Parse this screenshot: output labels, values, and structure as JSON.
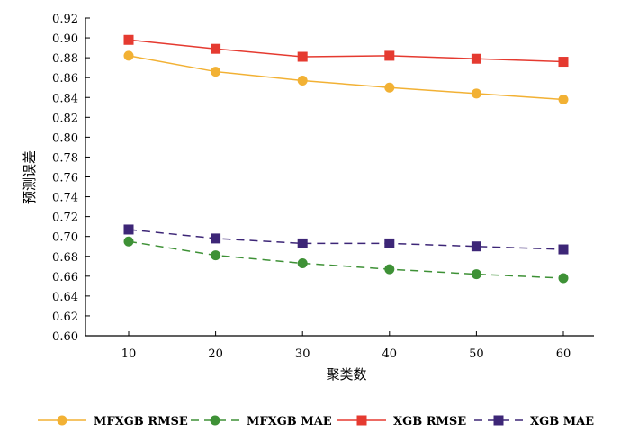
{
  "chart_data": {
    "type": "line",
    "title": "",
    "xlabel": "聚类数",
    "ylabel": "预测误差",
    "x": [
      10,
      20,
      30,
      40,
      50,
      60
    ],
    "ylim": [
      0.6,
      0.92
    ],
    "yticks": [
      "0.60",
      "0.62",
      "0.64",
      "0.66",
      "0.68",
      "0.70",
      "0.72",
      "0.74",
      "0.76",
      "0.78",
      "0.80",
      "0.82",
      "0.84",
      "0.86",
      "0.88",
      "0.90",
      "0.92"
    ],
    "xticks": [
      "10",
      "20",
      "30",
      "40",
      "50",
      "60"
    ],
    "grid": false,
    "legend_position": "bottom",
    "series": [
      {
        "name": "MFXGB RMSE",
        "color": "#f2b134",
        "marker": "circle",
        "dash": false,
        "values": [
          0.882,
          0.866,
          0.857,
          0.85,
          0.844,
          0.838
        ]
      },
      {
        "name": "MFXGB MAE",
        "color": "#3e9136",
        "marker": "circle",
        "dash": true,
        "values": [
          0.695,
          0.681,
          0.673,
          0.667,
          0.662,
          0.658
        ]
      },
      {
        "name": "XGB RMSE",
        "color": "#e53a30",
        "marker": "square",
        "dash": false,
        "values": [
          0.898,
          0.889,
          0.881,
          0.882,
          0.879,
          0.876
        ]
      },
      {
        "name": "XGB MAE",
        "color": "#3d2677",
        "marker": "square",
        "dash": true,
        "values": [
          0.707,
          0.698,
          0.693,
          0.693,
          0.69,
          0.687
        ]
      }
    ]
  }
}
